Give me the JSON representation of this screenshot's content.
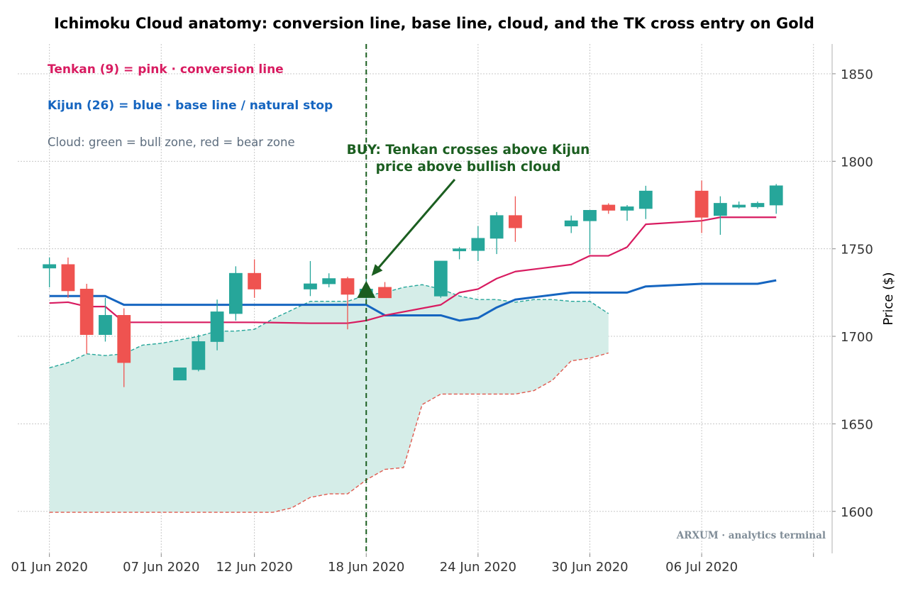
{
  "chart_data": {
    "type": "candlestick",
    "title": "Ichimoku Cloud anatomy: conversion line, base line, cloud, and the TK cross entry on Gold",
    "ylabel": "Price ($)",
    "xlabel": "",
    "ylim": [
      1576,
      1867
    ],
    "yticks": [
      1600,
      1650,
      1700,
      1750,
      1800,
      1850
    ],
    "x_start": "2020-06-01",
    "x_range_days": [
      -1.7,
      42
    ],
    "xticks": [
      {
        "day": 0,
        "label": "01 Jun 2020"
      },
      {
        "day": 6,
        "label": "07 Jun 2020"
      },
      {
        "day": 11,
        "label": "12 Jun 2020"
      },
      {
        "day": 17,
        "label": "18 Jun 2020"
      },
      {
        "day": 23,
        "label": "24 Jun 2020"
      },
      {
        "day": 29,
        "label": "30 Jun 2020"
      },
      {
        "day": 35,
        "label": "06 Jul 2020"
      }
    ],
    "grid": true,
    "colors": {
      "bull": "#26a69a",
      "bear": "#ef5350",
      "tenkan": "#d81b60",
      "kijun": "#1565c0",
      "cloud_fill": "#d5ede8",
      "cloud_edge_a": "#26a69a",
      "cloud_edge_b": "#e05a4f",
      "signal": "#1b5e20",
      "grid": "#c8c8c8"
    },
    "candles": [
      {
        "date": "2020-06-01",
        "open": 1739,
        "high": 1745,
        "low": 1728,
        "close": 1741
      },
      {
        "date": "2020-06-02",
        "open": 1741,
        "high": 1745,
        "low": 1722,
        "close": 1726
      },
      {
        "date": "2020-06-03",
        "open": 1727,
        "high": 1730,
        "low": 1690,
        "close": 1701
      },
      {
        "date": "2020-06-04",
        "open": 1701,
        "high": 1722,
        "low": 1697,
        "close": 1712
      },
      {
        "date": "2020-06-05",
        "open": 1712,
        "high": 1716,
        "low": 1671,
        "close": 1685
      },
      {
        "date": "2020-06-08",
        "open": 1675,
        "high": 1682,
        "low": 1675,
        "close": 1682
      },
      {
        "date": "2020-06-09",
        "open": 1681,
        "high": 1701,
        "low": 1680,
        "close": 1697
      },
      {
        "date": "2020-06-10",
        "open": 1697,
        "high": 1721,
        "low": 1692,
        "close": 1714
      },
      {
        "date": "2020-06-11",
        "open": 1713,
        "high": 1740,
        "low": 1709,
        "close": 1736
      },
      {
        "date": "2020-06-12",
        "open": 1736,
        "high": 1744,
        "low": 1722,
        "close": 1727
      },
      {
        "date": "2020-06-15",
        "open": 1727,
        "high": 1743,
        "low": 1723,
        "close": 1730
      },
      {
        "date": "2020-06-16",
        "open": 1730,
        "high": 1736,
        "low": 1728,
        "close": 1733
      },
      {
        "date": "2020-06-17",
        "open": 1733,
        "high": 1734,
        "low": 1704,
        "close": 1724
      },
      {
        "date": "2020-06-18",
        "open": 1724,
        "high": 1733,
        "low": 1718,
        "close": 1727
      },
      {
        "date": "2020-06-19",
        "open": 1728,
        "high": 1731,
        "low": 1722,
        "close": 1722
      },
      {
        "date": "2020-06-22",
        "open": 1723,
        "high": 1742,
        "low": 1722,
        "close": 1743
      },
      {
        "date": "2020-06-23",
        "open": 1749,
        "high": 1751,
        "low": 1744,
        "close": 1750
      },
      {
        "date": "2020-06-24",
        "open": 1749,
        "high": 1763,
        "low": 1743,
        "close": 1756
      },
      {
        "date": "2020-06-25",
        "open": 1756,
        "high": 1771,
        "low": 1747,
        "close": 1769
      },
      {
        "date": "2020-06-26",
        "open": 1769,
        "high": 1780,
        "low": 1754,
        "close": 1762
      },
      {
        "date": "2020-06-29",
        "open": 1763,
        "high": 1769,
        "low": 1759,
        "close": 1766
      },
      {
        "date": "2020-06-30",
        "open": 1766,
        "high": 1772,
        "low": 1747,
        "close": 1772
      },
      {
        "date": "2020-07-01",
        "open": 1775,
        "high": 1776,
        "low": 1770,
        "close": 1772
      },
      {
        "date": "2020-07-02",
        "open": 1772,
        "high": 1775,
        "low": 1766,
        "close": 1774
      },
      {
        "date": "2020-07-03",
        "open": 1773,
        "high": 1786,
        "low": 1767,
        "close": 1783
      },
      {
        "date": "2020-07-06",
        "open": 1783,
        "high": 1789,
        "low": 1759,
        "close": 1768
      },
      {
        "date": "2020-07-07",
        "open": 1769,
        "high": 1780,
        "low": 1758,
        "close": 1776
      },
      {
        "date": "2020-07-08",
        "open": 1775,
        "high": 1777,
        "low": 1773,
        "close": 1775
      },
      {
        "date": "2020-07-09",
        "open": 1774,
        "high": 1777,
        "low": 1773,
        "close": 1776
      },
      {
        "date": "2020-07-10",
        "open": 1775,
        "high": 1787,
        "low": 1770,
        "close": 1786
      }
    ],
    "series": [
      {
        "name": "Tenkan (9)",
        "key": "tenkan",
        "values": [
          1719,
          1719.5,
          1717,
          1717,
          1708,
          1708,
          1708,
          1708,
          1708,
          1708,
          1707.5,
          1707.5,
          1707.5,
          1709,
          1712,
          1718,
          1725,
          1727,
          1733,
          1737,
          1741,
          1746,
          1746,
          1751,
          1764,
          1766,
          1768,
          1768,
          1768,
          1768
        ]
      },
      {
        "name": "Kijun (26)",
        "key": "kijun",
        "values": [
          1723,
          1723,
          1723,
          1723,
          1718,
          1718,
          1718,
          1718,
          1718,
          1718,
          1718,
          1718,
          1718,
          1718,
          1712,
          1712,
          1709,
          1710.5,
          1716.5,
          1721,
          1725,
          1725,
          1725,
          1725,
          1728.5,
          1730,
          1730,
          1730,
          1730,
          1732
        ]
      },
      {
        "name": "Senkou A",
        "key": "senkou_a",
        "values": [
          1682,
          1685,
          1690,
          1689,
          1690,
          1695,
          1696,
          1698,
          1700,
          1703,
          1703,
          1704,
          1710,
          1715,
          1720,
          1720,
          1720,
          1723.5,
          1725,
          1728,
          1729.5,
          1727,
          1723,
          1721,
          1721,
          1719.5,
          1721,
          1721,
          1720,
          1720,
          1713
        ]
      },
      {
        "name": "Senkou B",
        "key": "senkou_b",
        "values": [
          1599.5,
          1599.5,
          1599.5,
          1599.5,
          1599.5,
          1599.5,
          1599.5,
          1599.5,
          1599.5,
          1599.5,
          1599.5,
          1599.5,
          1599.5,
          1602,
          1608,
          1610,
          1610,
          1618,
          1624,
          1625,
          1661,
          1667,
          1667,
          1667,
          1667,
          1667,
          1669,
          1675,
          1686,
          1687.5,
          1690.5
        ]
      }
    ],
    "cloud_days": [
      0,
      1,
      2,
      3,
      4,
      5,
      6,
      7,
      8,
      9,
      10,
      11,
      12,
      13,
      14,
      15,
      16,
      17,
      18,
      19,
      20,
      21,
      22,
      23,
      24,
      25,
      26,
      27,
      28,
      29,
      30
    ],
    "legend_text": [
      "Tenkan (9) = pink · conversion line",
      "Kijun (26) = blue · base line / natural stop",
      "Cloud: green = bull zone, red = bear zone"
    ],
    "signal": {
      "date": "2020-06-18",
      "price": 1726
    },
    "annotation": {
      "line1": "BUY: Tenkan crosses above Kijun",
      "line2": "price above bullish cloud"
    },
    "watermark": "ARXUM · analytics terminal"
  }
}
